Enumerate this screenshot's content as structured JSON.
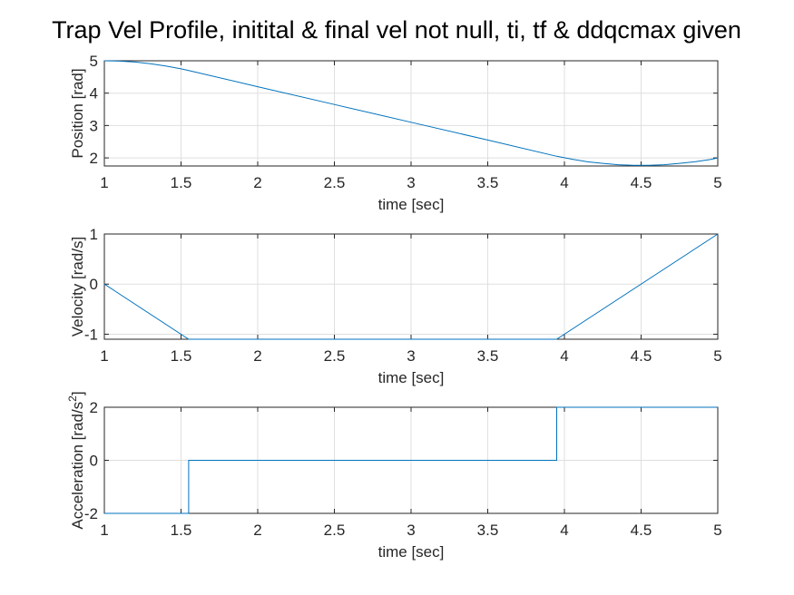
{
  "figure": {
    "title": "Trap Vel Profile, initital & final vel not null, ti, tf & ddqcmax given"
  },
  "colors": {
    "series": "#0072bd",
    "axes": "#262626",
    "grid": "#dfdfdf"
  },
  "chart_data": [
    {
      "type": "line",
      "xlabel": "time [sec]",
      "ylabel": "Position [rad]",
      "xlim": [
        1,
        5
      ],
      "ylim": [
        1.75,
        5
      ],
      "xticks": [
        1,
        1.5,
        2,
        2.5,
        3,
        3.5,
        4,
        4.5,
        5
      ],
      "xtick_labels": [
        "1",
        "1.5",
        "2",
        "2.5",
        "3",
        "3.5",
        "4",
        "4.5",
        "5"
      ],
      "yticks": [
        2,
        3,
        4,
        5
      ],
      "ytick_labels": [
        "2",
        "3",
        "4",
        "5"
      ],
      "grid": true,
      "series": [
        {
          "x": [
            1,
            1.1,
            1.2,
            1.3,
            1.4,
            1.5,
            1.55,
            2,
            2.5,
            3,
            3.5,
            3.95,
            4.05,
            4.15,
            4.25,
            4.35,
            4.45,
            4.55,
            4.65,
            4.75,
            4.85,
            4.95,
            5
          ],
          "y": [
            5.0,
            4.99,
            4.96,
            4.91,
            4.84,
            4.75,
            4.7,
            4.2,
            3.65,
            3.1,
            2.55,
            2.05,
            1.96,
            1.88,
            1.83,
            1.79,
            1.77,
            1.77,
            1.79,
            1.83,
            1.88,
            1.95,
            2.0
          ]
        }
      ]
    },
    {
      "type": "line",
      "xlabel": "time [sec]",
      "ylabel": "Velocity [rad/s]",
      "xlim": [
        1,
        5
      ],
      "ylim": [
        -1.1,
        1
      ],
      "xticks": [
        1,
        1.5,
        2,
        2.5,
        3,
        3.5,
        4,
        4.5,
        5
      ],
      "xtick_labels": [
        "1",
        "1.5",
        "2",
        "2.5",
        "3",
        "3.5",
        "4",
        "4.5",
        "5"
      ],
      "yticks": [
        -1,
        0,
        1
      ],
      "ytick_labels": [
        "-1",
        "0",
        "1"
      ],
      "grid": true,
      "series": [
        {
          "x": [
            1,
            1.55,
            3.95,
            5
          ],
          "y": [
            0,
            -1.1,
            -1.1,
            1
          ]
        }
      ]
    },
    {
      "type": "line",
      "xlabel": "time [sec]",
      "ylabel": "Acceleration [rad/s",
      "ylabel_sup": "2",
      "ylabel_close": "]",
      "xlim": [
        1,
        5
      ],
      "ylim": [
        -2,
        2
      ],
      "xticks": [
        1,
        1.5,
        2,
        2.5,
        3,
        3.5,
        4,
        4.5,
        5
      ],
      "xtick_labels": [
        "1",
        "1.5",
        "2",
        "2.5",
        "3",
        "3.5",
        "4",
        "4.5",
        "5"
      ],
      "yticks": [
        -2,
        0,
        2
      ],
      "ytick_labels": [
        "-2",
        "0",
        "2"
      ],
      "grid": true,
      "series": [
        {
          "x": [
            1,
            1.55,
            1.55,
            3.95,
            3.95,
            5
          ],
          "y": [
            -2,
            -2,
            0,
            0,
            2,
            2
          ]
        }
      ]
    }
  ]
}
